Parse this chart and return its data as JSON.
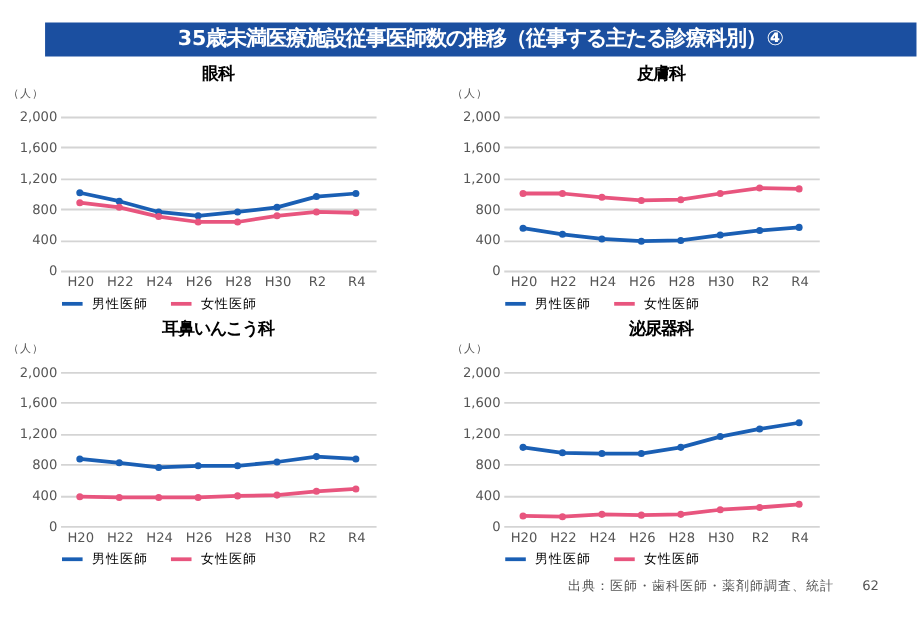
{
  "chart_data": [
    {
      "type": "line",
      "title": "眼科",
      "ylabel": "（人）",
      "annotations": [
        "35歳未満医療施設従事医師数の推移（従事する主たる診療科別）④"
      ],
      "categories": [
        "H20",
        "H22",
        "H24",
        "H26",
        "H28",
        "H30",
        "R2",
        "R4"
      ],
      "ylim": [
        0,
        2000
      ],
      "yticks": [
        0,
        400,
        800,
        {
          "value": 1200,
          "label": "1,200"
        },
        {
          "value": 1600,
          "label": "1,600"
        },
        {
          "value": 2000,
          "label": "2,000"
        }
      ],
      "grid": "y",
      "legend": "bottom",
      "marker": "circle",
      "line_style": "solid",
      "series": [
        {
          "name": "男性医師",
          "color": "#1a5fb4",
          "values": [
            1010,
            900,
            760,
            710,
            760,
            820,
            960,
            1000
          ]
        },
        {
          "name": "女性医師",
          "color": "#e8557e",
          "values": [
            880,
            820,
            700,
            630,
            630,
            710,
            760,
            750
          ]
        }
      ]
    },
    {
      "type": "line",
      "title": "皮膚科",
      "ylabel": "（人）",
      "categories": [
        "H20",
        "H22",
        "H24",
        "H26",
        "H28",
        "H30",
        "R2",
        "R4"
      ],
      "ylim": [
        0,
        2000
      ],
      "yticks": [
        0,
        400,
        800,
        {
          "value": 1200,
          "label": "1,200"
        },
        {
          "value": 1600,
          "label": "1,600"
        },
        {
          "value": 2000,
          "label": "2,000"
        }
      ],
      "grid": "y",
      "legend": "bottom",
      "marker": "circle",
      "line_style": "solid",
      "series": [
        {
          "name": "男性医師",
          "color": "#1a5fb4",
          "values": [
            550,
            470,
            410,
            380,
            390,
            460,
            520,
            560
          ]
        },
        {
          "name": "女性医師",
          "color": "#e8557e",
          "values": [
            1000,
            1000,
            950,
            910,
            920,
            1000,
            1070,
            1060
          ]
        }
      ]
    },
    {
      "type": "line",
      "title": "耳鼻いんこう科",
      "ylabel": "（人）",
      "categories": [
        "H20",
        "H22",
        "H24",
        "H26",
        "H28",
        "H30",
        "R2",
        "R4"
      ],
      "ylim": [
        0,
        2000
      ],
      "yticks": [
        0,
        400,
        800,
        {
          "value": 1200,
          "label": "1,200"
        },
        {
          "value": 1600,
          "label": "1,600"
        },
        {
          "value": 2000,
          "label": "2,000"
        }
      ],
      "grid": "y",
      "legend": "bottom",
      "marker": "circle",
      "line_style": "solid",
      "series": [
        {
          "name": "男性医師",
          "color": "#1a5fb4",
          "values": [
            870,
            820,
            760,
            780,
            780,
            830,
            900,
            870
          ]
        },
        {
          "name": "女性医師",
          "color": "#e8557e",
          "values": [
            380,
            370,
            370,
            370,
            390,
            400,
            450,
            480
          ]
        }
      ]
    },
    {
      "type": "line",
      "title": "泌尿器科",
      "ylabel": "（人）",
      "annotations": [
        "出典：医師・歯科医師・薬剤師調査、統計",
        "62"
      ],
      "categories": [
        "H20",
        "H22",
        "H24",
        "H26",
        "H28",
        "H30",
        "R2",
        "R4"
      ],
      "ylim": [
        0,
        2000
      ],
      "yticks": [
        0,
        400,
        800,
        {
          "value": 1200,
          "label": "1,200"
        },
        {
          "value": 1600,
          "label": "1,600"
        },
        {
          "value": 2000,
          "label": "2,000"
        }
      ],
      "grid": "y",
      "legend": "bottom",
      "marker": "circle",
      "line_style": "solid",
      "series": [
        {
          "name": "男性医師",
          "color": "#1a5fb4",
          "values": [
            1020,
            950,
            940,
            940,
            1020,
            1160,
            1260,
            1340
          ]
        },
        {
          "name": "女性医師",
          "color": "#e8557e",
          "values": [
            130,
            120,
            150,
            140,
            150,
            210,
            240,
            280
          ]
        }
      ]
    }
  ]
}
